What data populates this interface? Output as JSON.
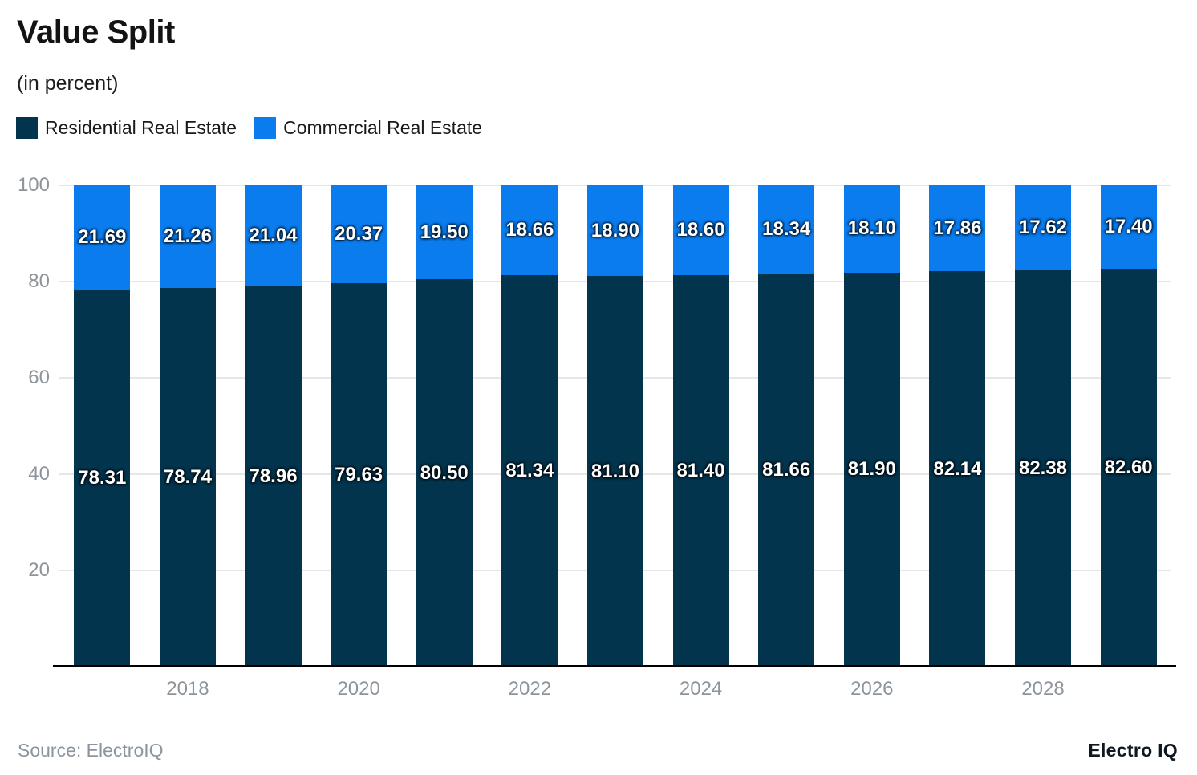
{
  "header": {
    "title": "Value Split",
    "subtitle": "(in percent)"
  },
  "legend": [
    {
      "label": "Residential Real Estate",
      "color": "#03344d"
    },
    {
      "label": "Commercial Real Estate",
      "color": "#0a7cee"
    }
  ],
  "footer": {
    "source": "Source: ElectroIQ",
    "brand": "Electro IQ"
  },
  "chart_data": {
    "type": "bar",
    "subtype": "stacked",
    "title": "Value Split",
    "units": "percent",
    "x_labels": [
      "",
      "2018",
      "",
      "2020",
      "",
      "2022",
      "",
      "2024",
      "",
      "2026",
      "",
      "2028",
      ""
    ],
    "series": [
      {
        "name": "Residential Real Estate",
        "color": "#03344d",
        "values": [
          "78.31",
          "78.74",
          "78.96",
          "79.63",
          "80.50",
          "81.34",
          "81.10",
          "81.40",
          "81.66",
          "81.90",
          "82.14",
          "82.38",
          "82.60"
        ]
      },
      {
        "name": "Commercial Real Estate",
        "color": "#0a7cee",
        "values": [
          "21.69",
          "21.26",
          "21.04",
          "20.37",
          "19.50",
          "18.66",
          "18.90",
          "18.60",
          "18.34",
          "18.10",
          "17.86",
          "17.62",
          "17.40"
        ]
      }
    ],
    "ylim": [
      0,
      100
    ],
    "yticks": [
      20,
      40,
      60,
      80,
      100
    ],
    "grid": true,
    "legend_position": "top"
  }
}
